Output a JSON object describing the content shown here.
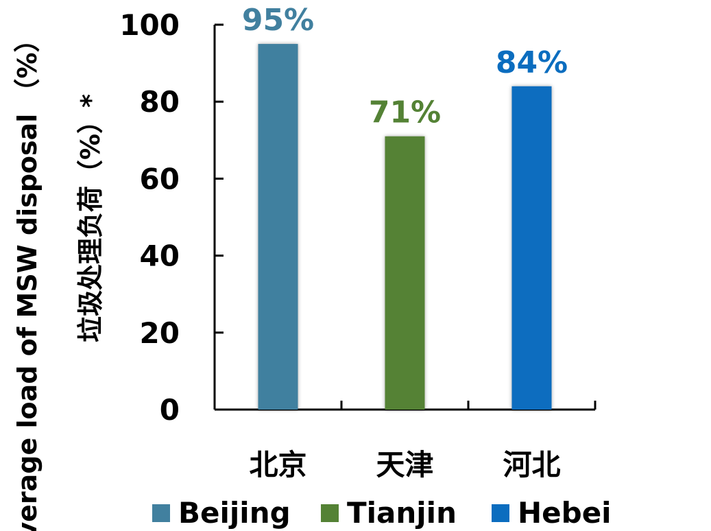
{
  "chart_data": {
    "type": "bar",
    "categories": [
      "北京",
      "天津",
      "河北"
    ],
    "values": [
      95,
      71,
      84
    ],
    "value_labels": [
      "95%",
      "71%",
      "84%"
    ],
    "colors": [
      "#41809f",
      "#548235",
      "#0b6dbf"
    ],
    "legend": [
      "Beijing",
      "Tianjin",
      "Hebei"
    ],
    "legend_position": "bottom",
    "ylabel_en": "verage load of MSW disposal （%）",
    "ylabel_cn": "垃圾处理负荷（%）*",
    "ylim": [
      0,
      100
    ],
    "yticks": [
      "0",
      "20",
      "40",
      "60",
      "80",
      "100"
    ],
    "grid": false
  }
}
